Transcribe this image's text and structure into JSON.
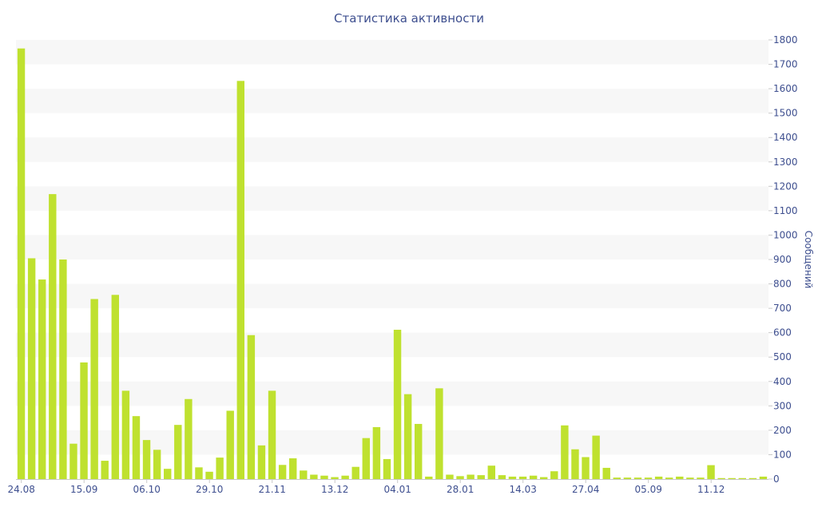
{
  "chart_data": {
    "type": "bar",
    "title": "Статистика активности",
    "ylabel": "Сообщений",
    "xlabel": "",
    "ylim": [
      0,
      1800
    ],
    "y_ticks": [
      0,
      100,
      200,
      300,
      400,
      500,
      600,
      700,
      800,
      900,
      1000,
      1100,
      1200,
      1300,
      1400,
      1500,
      1600,
      1700,
      1800
    ],
    "y_axis_position": "right",
    "grid": "alternating horizontal bands",
    "bar_color": "#bfe12f",
    "band_color": "#f7f7f7",
    "text_color": "#3e4f8f",
    "x_tick_labels": [
      {
        "index": 0,
        "label": "24.08"
      },
      {
        "index": 6,
        "label": "15.09"
      },
      {
        "index": 12,
        "label": "06.10"
      },
      {
        "index": 18,
        "label": "29.10"
      },
      {
        "index": 24,
        "label": "21.11"
      },
      {
        "index": 30,
        "label": "13.12"
      },
      {
        "index": 36,
        "label": "04.01"
      },
      {
        "index": 42,
        "label": "28.01"
      },
      {
        "index": 48,
        "label": "14.03"
      },
      {
        "index": 54,
        "label": "27.04"
      },
      {
        "index": 60,
        "label": "05.09"
      },
      {
        "index": 66,
        "label": "11.12"
      }
    ],
    "values": [
      1765,
      905,
      818,
      1168,
      900,
      145,
      478,
      738,
      75,
      755,
      362,
      258,
      160,
      120,
      42,
      222,
      328,
      48,
      30,
      88,
      280,
      1632,
      590,
      138,
      362,
      58,
      85,
      35,
      18,
      14,
      8,
      14,
      50,
      168,
      213,
      82,
      612,
      348,
      226,
      10,
      372,
      18,
      12,
      18,
      16,
      55,
      16,
      10,
      10,
      14,
      8,
      32,
      220,
      122,
      90,
      178,
      46,
      6,
      6,
      6,
      6,
      10,
      6,
      10,
      6,
      6,
      57,
      4,
      4,
      4,
      4,
      10
    ]
  }
}
